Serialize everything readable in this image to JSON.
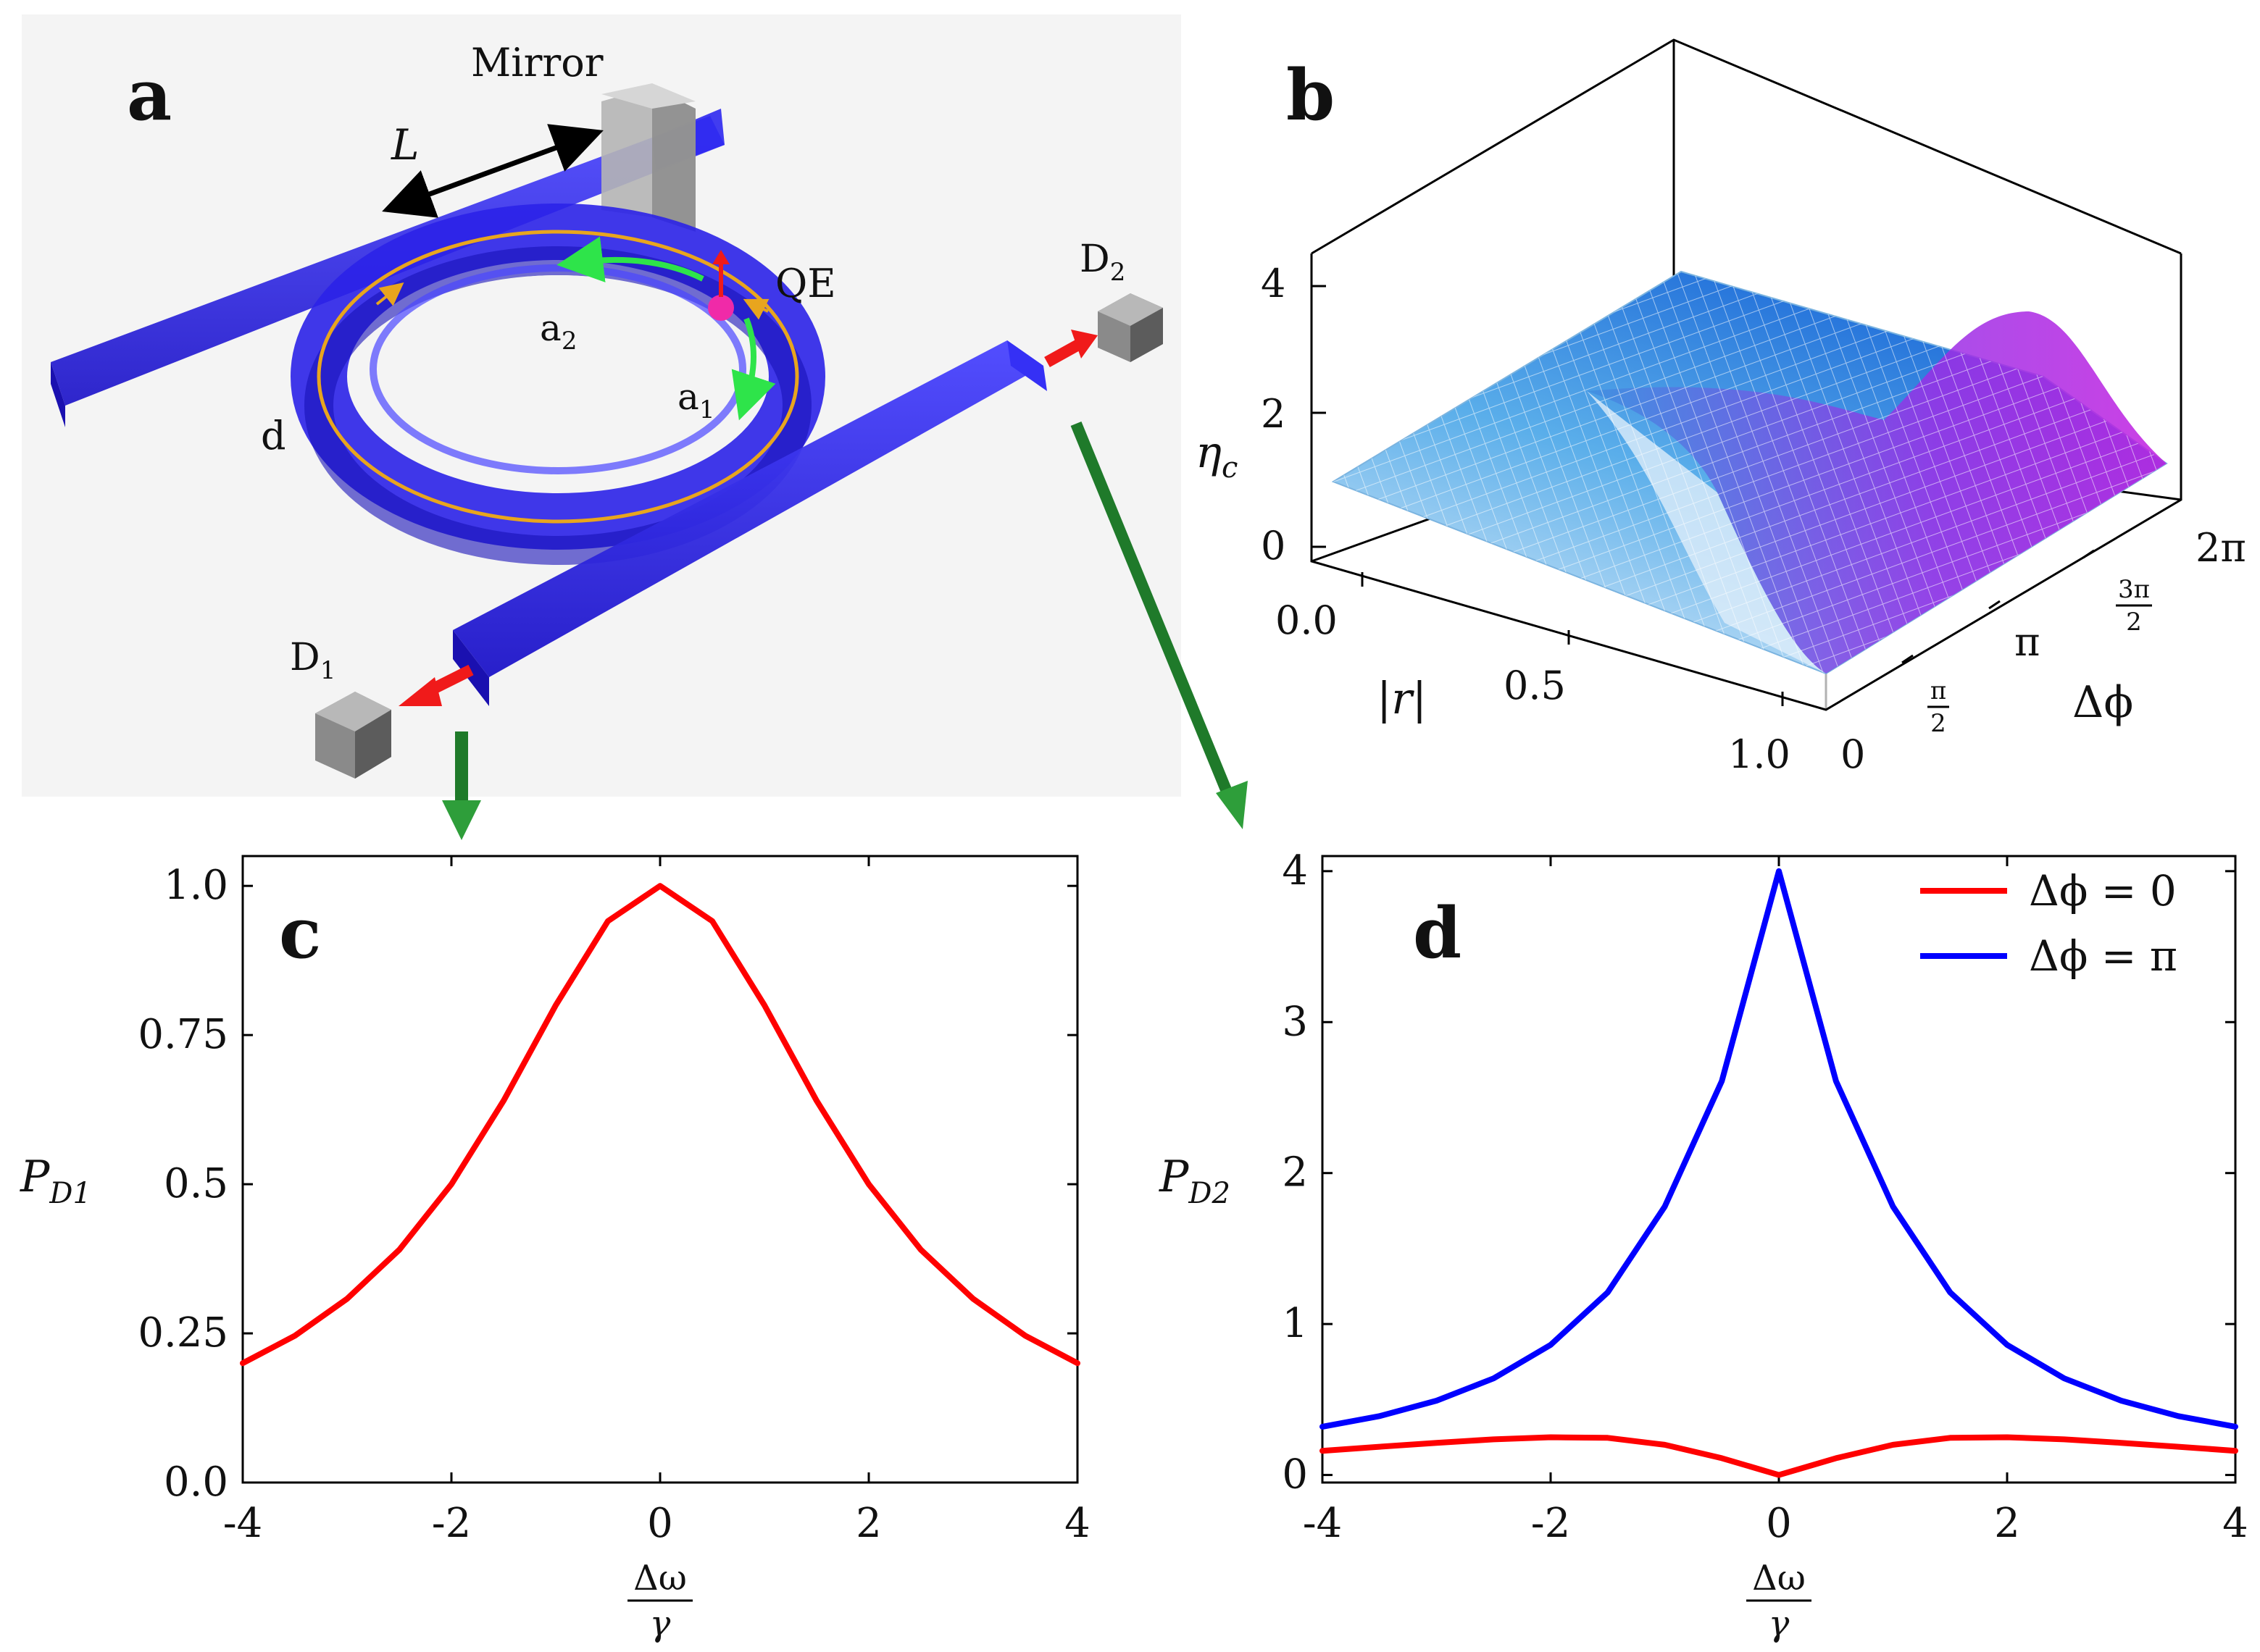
{
  "panels": {
    "a": {
      "label": "a",
      "mirror_label": "Mirror",
      "length_label": "L",
      "emitter_label": "QE",
      "detector2_label": "D",
      "detector2_sub": "2",
      "detector1_label": "D",
      "detector1_sub": "1",
      "mode2_label": "a",
      "mode2_sub": "2",
      "mode1_label": "a",
      "mode1_sub": "1",
      "diameter_label": "d",
      "colors": {
        "waveguide": "#2b22e8",
        "mirror": "#9a9a9a",
        "detector": "#6e6e6e",
        "arrow_green": "#2ee44a",
        "arrow_red": "#f01a1a",
        "emitter": "#f02aa8",
        "ring_trace": "#e8a51e",
        "pointer": "#1f7a2a"
      }
    },
    "b": {
      "label": "b",
      "z_label": "η",
      "z_sub": "c",
      "r_label": "|r|",
      "phi_label": "Δϕ",
      "z_ticks": [
        "0",
        "2",
        "4"
      ],
      "r_ticks": [
        "0.0",
        "0.5",
        "1.0"
      ],
      "phi_ticks": [
        "0",
        "π",
        "2π"
      ],
      "phi_frac_ticks": [
        {
          "num": "π",
          "den": "2"
        },
        {
          "num": "3π",
          "den": "2"
        }
      ],
      "surface_colors": [
        "#e8f2fb",
        "#4aa3e8",
        "#1e6fd6",
        "#b21ce0"
      ]
    }
  },
  "chart_data": [
    {
      "panel": "c",
      "type": "line",
      "label": "c",
      "xlabel_num": "Δω",
      "xlabel_den": "γ",
      "ylabel": "P",
      "ylabel_sub": "D1",
      "xlim": [
        -4,
        4
      ],
      "ylim": [
        0,
        1.05
      ],
      "x_ticks": [
        "-4",
        "-2",
        "0",
        "2",
        "4"
      ],
      "y_ticks": [
        "0.0",
        "0.25",
        "0.5",
        "0.75",
        "1.0"
      ],
      "series": [
        {
          "name": "P_D1",
          "color": "#ff0000",
          "x": [
            -4,
            -3.5,
            -3,
            -2.5,
            -2,
            -1.5,
            -1,
            -0.5,
            0,
            0.5,
            1,
            1.5,
            2,
            2.5,
            3,
            3.5,
            4
          ],
          "y": [
            0.2,
            0.246,
            0.308,
            0.39,
            0.5,
            0.64,
            0.8,
            0.941,
            1.0,
            0.941,
            0.8,
            0.64,
            0.5,
            0.39,
            0.308,
            0.246,
            0.2
          ]
        }
      ]
    },
    {
      "panel": "d",
      "type": "line",
      "label": "d",
      "xlabel_num": "Δω",
      "xlabel_den": "γ",
      "ylabel": "P",
      "ylabel_sub": "D2",
      "xlim": [
        -4,
        4
      ],
      "ylim": [
        -0.05,
        4.1
      ],
      "x_ticks": [
        "-4",
        "-2",
        "0",
        "2",
        "4"
      ],
      "y_ticks": [
        "0",
        "1",
        "2",
        "3",
        "4"
      ],
      "legend_position": "top-right",
      "series": [
        {
          "name": "Δϕ = 0",
          "color": "#ff0000",
          "x": [
            -4,
            -3.5,
            -3,
            -2.5,
            -2,
            -1.5,
            -1,
            -0.5,
            0,
            0.5,
            1,
            1.5,
            2,
            2.5,
            3,
            3.5,
            4
          ],
          "y": [
            0.16,
            0.187,
            0.213,
            0.236,
            0.25,
            0.246,
            0.2,
            0.111,
            0.0,
            0.111,
            0.2,
            0.246,
            0.25,
            0.236,
            0.213,
            0.187,
            0.16
          ]
        },
        {
          "name": "Δϕ = π",
          "color": "#0000ff",
          "x": [
            -4,
            -3.5,
            -3,
            -2.5,
            -2,
            -1.5,
            -1,
            -0.5,
            0,
            0.5,
            1,
            1.5,
            2,
            2.5,
            3,
            3.5,
            4
          ],
          "y": [
            0.32,
            0.39,
            0.492,
            0.64,
            0.862,
            1.21,
            1.778,
            2.61,
            4.0,
            2.61,
            1.778,
            1.21,
            0.862,
            0.64,
            0.492,
            0.39,
            0.32
          ]
        }
      ]
    }
  ]
}
